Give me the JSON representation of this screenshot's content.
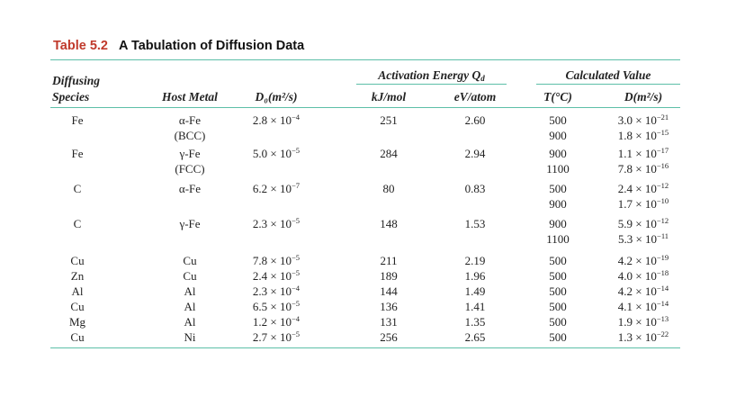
{
  "caption": {
    "number": "Table 5.2",
    "title": "A Tabulation of Diffusion Data"
  },
  "headers": {
    "diffusing_l1": "Diffusing",
    "diffusing_l2": "Species",
    "host_metal": "Host Metal",
    "d0": "D₀(m²/s)",
    "activation_group": "Activation Energy Q",
    "activation_sub": "d",
    "kj": "kJ/mol",
    "ev": "eV/atom",
    "calc_group": "Calculated Value",
    "t": "T(°C)",
    "d": "D(m²/s)"
  },
  "rows": [
    {
      "species": "Fe",
      "host": "α-Fe",
      "host2": "(BCC)",
      "d0m": "2.8",
      "d0e": "−4",
      "kj": "251",
      "ev": "2.60",
      "t": [
        "500",
        "900"
      ],
      "dm": [
        "3.0",
        "1.8"
      ],
      "de": [
        "−21",
        "−15"
      ]
    },
    {
      "species": "Fe",
      "host": "γ-Fe",
      "host2": "(FCC)",
      "d0m": "5.0",
      "d0e": "−5",
      "kj": "284",
      "ev": "2.94",
      "t": [
        "900",
        "1100"
      ],
      "dm": [
        "1.1",
        "7.8"
      ],
      "de": [
        "−17",
        "−16"
      ]
    },
    {
      "species": "C",
      "host": "α-Fe",
      "host2": "",
      "d0m": "6.2",
      "d0e": "−7",
      "kj": "80",
      "ev": "0.83",
      "t": [
        "500",
        "900"
      ],
      "dm": [
        "2.4",
        "1.7"
      ],
      "de": [
        "−12",
        "−10"
      ]
    },
    {
      "species": "C",
      "host": "γ-Fe",
      "host2": "",
      "d0m": "2.3",
      "d0e": "−5",
      "kj": "148",
      "ev": "1.53",
      "t": [
        "900",
        "1100"
      ],
      "dm": [
        "5.9",
        "5.3"
      ],
      "de": [
        "−12",
        "−11"
      ]
    },
    {
      "species": "Cu",
      "host": "Cu",
      "d0m": "7.8",
      "d0e": "−5",
      "kj": "211",
      "ev": "2.19",
      "t": [
        "500"
      ],
      "dm": [
        "4.2"
      ],
      "de": [
        "−19"
      ]
    },
    {
      "species": "Zn",
      "host": "Cu",
      "d0m": "2.4",
      "d0e": "−5",
      "kj": "189",
      "ev": "1.96",
      "t": [
        "500"
      ],
      "dm": [
        "4.0"
      ],
      "de": [
        "−18"
      ]
    },
    {
      "species": "Al",
      "host": "Al",
      "d0m": "2.3",
      "d0e": "−4",
      "kj": "144",
      "ev": "1.49",
      "t": [
        "500"
      ],
      "dm": [
        "4.2"
      ],
      "de": [
        "−14"
      ]
    },
    {
      "species": "Cu",
      "host": "Al",
      "d0m": "6.5",
      "d0e": "−5",
      "kj": "136",
      "ev": "1.41",
      "t": [
        "500"
      ],
      "dm": [
        "4.1"
      ],
      "de": [
        "−14"
      ]
    },
    {
      "species": "Mg",
      "host": "Al",
      "d0m": "1.2",
      "d0e": "−4",
      "kj": "131",
      "ev": "1.35",
      "t": [
        "500"
      ],
      "dm": [
        "1.9"
      ],
      "de": [
        "−13"
      ]
    },
    {
      "species": "Cu",
      "host": "Ni",
      "d0m": "2.7",
      "d0e": "−5",
      "kj": "256",
      "ev": "2.65",
      "t": [
        "500"
      ],
      "dm": [
        "1.3"
      ],
      "de": [
        "−22"
      ]
    }
  ],
  "times": "×",
  "ten": "10",
  "colors": {
    "rule": "#5dbfa8",
    "table_number": "#c0392b"
  }
}
